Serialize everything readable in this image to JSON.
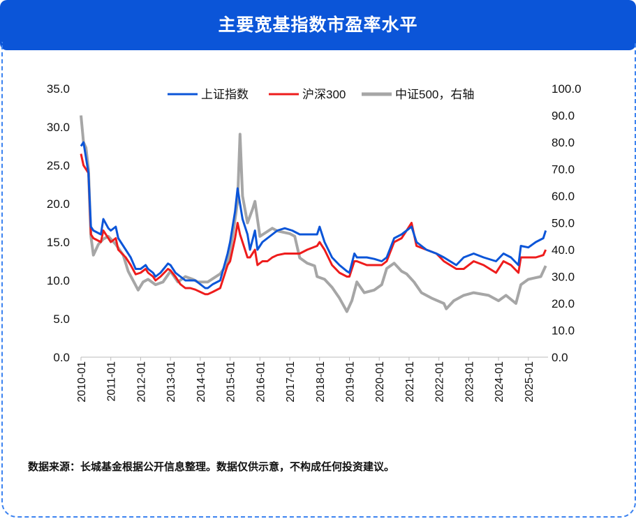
{
  "header": {
    "title": "主要宽基指数市盈率水平"
  },
  "footer": {
    "note": "数据来源：长城基金根据公开信息整理。数据仅供示意，不构成任何投资建议。"
  },
  "chart_data": {
    "type": "line",
    "title": "",
    "grid": false,
    "legend_position": "top",
    "y_left": {
      "lim": [
        0,
        35
      ],
      "ticks": [
        "0.0",
        "5.0",
        "10.0",
        "15.0",
        "20.0",
        "25.0",
        "30.0",
        "35.0"
      ]
    },
    "y_right": {
      "lim": [
        0,
        100
      ],
      "ticks": [
        "0.0",
        "10.0",
        "20.0",
        "30.0",
        "40.0",
        "50.0",
        "60.0",
        "70.0",
        "80.0",
        "90.0",
        "100.0"
      ]
    },
    "x_ticks": [
      "2010-01",
      "2011-01",
      "2012-01",
      "2013-01",
      "2014-01",
      "2015-01",
      "2016-01",
      "2017-01",
      "2018-01",
      "2019-01",
      "2020-01",
      "2021-01",
      "2022-01",
      "2023-01",
      "2024-01",
      "2025-01"
    ],
    "series": [
      {
        "name": "上证指数",
        "axis": "left",
        "color": "#0b55d8",
        "points": [
          [
            "2010-01",
            27.5
          ],
          [
            "2010-02",
            28
          ],
          [
            "2010-04",
            24
          ],
          [
            "2010-05",
            17
          ],
          [
            "2010-06",
            16.5
          ],
          [
            "2010-09",
            16
          ],
          [
            "2010-10",
            18
          ],
          [
            "2010-12",
            16.8
          ],
          [
            "2011-01",
            16.5
          ],
          [
            "2011-03",
            17
          ],
          [
            "2011-04",
            15.5
          ],
          [
            "2011-07",
            14
          ],
          [
            "2011-09",
            13
          ],
          [
            "2011-11",
            11.5
          ],
          [
            "2012-01",
            11.5
          ],
          [
            "2012-03",
            12
          ],
          [
            "2012-04",
            11.5
          ],
          [
            "2012-06",
            11
          ],
          [
            "2012-07",
            10.5
          ],
          [
            "2012-09",
            11
          ],
          [
            "2012-12",
            12.2
          ],
          [
            "2013-01",
            12
          ],
          [
            "2013-03",
            11
          ],
          [
            "2013-05",
            10.5
          ],
          [
            "2013-07",
            10
          ],
          [
            "2013-09",
            10
          ],
          [
            "2013-11",
            10
          ],
          [
            "2014-01",
            9.5
          ],
          [
            "2014-03",
            9
          ],
          [
            "2014-04",
            9
          ],
          [
            "2014-06",
            9.5
          ],
          [
            "2014-09",
            10
          ],
          [
            "2014-12",
            13.5
          ],
          [
            "2015-01",
            15
          ],
          [
            "2015-03",
            19
          ],
          [
            "2015-04",
            22
          ],
          [
            "2015-05",
            20
          ],
          [
            "2015-06",
            18
          ],
          [
            "2015-08",
            16
          ],
          [
            "2015-09",
            14
          ],
          [
            "2015-11",
            16.5
          ],
          [
            "2015-12",
            14
          ],
          [
            "2016-02",
            15
          ],
          [
            "2016-04",
            15.5
          ],
          [
            "2016-06",
            16
          ],
          [
            "2016-08",
            16.5
          ],
          [
            "2016-11",
            16.8
          ],
          [
            "2017-02",
            16.5
          ],
          [
            "2017-05",
            16
          ],
          [
            "2017-08",
            16
          ],
          [
            "2017-12",
            16
          ],
          [
            "2018-01",
            17
          ],
          [
            "2018-03",
            15
          ],
          [
            "2018-06",
            13
          ],
          [
            "2018-09",
            12
          ],
          [
            "2018-12",
            11.2
          ],
          [
            "2019-01",
            11
          ],
          [
            "2019-03",
            13.5
          ],
          [
            "2019-04",
            13
          ],
          [
            "2019-08",
            13
          ],
          [
            "2019-11",
            12.8
          ],
          [
            "2020-02",
            12.5
          ],
          [
            "2020-04",
            13
          ],
          [
            "2020-07",
            15.5
          ],
          [
            "2020-10",
            16
          ],
          [
            "2020-12",
            16.5
          ],
          [
            "2021-02",
            17
          ],
          [
            "2021-04",
            15
          ],
          [
            "2021-08",
            14
          ],
          [
            "2021-12",
            13.5
          ],
          [
            "2022-03",
            13
          ],
          [
            "2022-08",
            12
          ],
          [
            "2022-11",
            13
          ],
          [
            "2023-03",
            13.5
          ],
          [
            "2023-07",
            13
          ],
          [
            "2023-12",
            12.5
          ],
          [
            "2024-03",
            13.5
          ],
          [
            "2024-06",
            13
          ],
          [
            "2024-09",
            12
          ],
          [
            "2024-10",
            14.5
          ],
          [
            "2025-01",
            14.3
          ],
          [
            "2025-04",
            15
          ],
          [
            "2025-07",
            15.5
          ],
          [
            "2025-08",
            16.5
          ]
        ]
      },
      {
        "name": "沪深300",
        "axis": "left",
        "color": "#ee1c1c",
        "points": [
          [
            "2010-01",
            26.5
          ],
          [
            "2010-02",
            25
          ],
          [
            "2010-04",
            24
          ],
          [
            "2010-05",
            16
          ],
          [
            "2010-06",
            15.5
          ],
          [
            "2010-09",
            15
          ],
          [
            "2010-10",
            16.5
          ],
          [
            "2010-12",
            15.5
          ],
          [
            "2011-01",
            15
          ],
          [
            "2011-03",
            15.5
          ],
          [
            "2011-04",
            14
          ],
          [
            "2011-07",
            13
          ],
          [
            "2011-09",
            12
          ],
          [
            "2011-11",
            10.8
          ],
          [
            "2012-01",
            11
          ],
          [
            "2012-03",
            11.5
          ],
          [
            "2012-04",
            11
          ],
          [
            "2012-06",
            10.5
          ],
          [
            "2012-07",
            10
          ],
          [
            "2012-09",
            10.5
          ],
          [
            "2012-12",
            11.5
          ],
          [
            "2013-01",
            11.3
          ],
          [
            "2013-03",
            10.5
          ],
          [
            "2013-05",
            9.5
          ],
          [
            "2013-07",
            9
          ],
          [
            "2013-09",
            9
          ],
          [
            "2013-11",
            8.8
          ],
          [
            "2014-01",
            8.5
          ],
          [
            "2014-03",
            8.2
          ],
          [
            "2014-04",
            8.2
          ],
          [
            "2014-06",
            8.5
          ],
          [
            "2014-09",
            9
          ],
          [
            "2014-12",
            12
          ],
          [
            "2015-01",
            12.5
          ],
          [
            "2015-03",
            15.5
          ],
          [
            "2015-04",
            17.5
          ],
          [
            "2015-05",
            16
          ],
          [
            "2015-06",
            15
          ],
          [
            "2015-08",
            13
          ],
          [
            "2015-09",
            13
          ],
          [
            "2015-11",
            14
          ],
          [
            "2015-12",
            12
          ],
          [
            "2016-02",
            12.5
          ],
          [
            "2016-04",
            12.5
          ],
          [
            "2016-06",
            13
          ],
          [
            "2016-08",
            13.3
          ],
          [
            "2016-11",
            13.5
          ],
          [
            "2017-02",
            13.5
          ],
          [
            "2017-05",
            13.5
          ],
          [
            "2017-08",
            14
          ],
          [
            "2017-12",
            14.5
          ],
          [
            "2018-01",
            15
          ],
          [
            "2018-03",
            14
          ],
          [
            "2018-06",
            12
          ],
          [
            "2018-09",
            11
          ],
          [
            "2018-12",
            10.5
          ],
          [
            "2019-01",
            10.5
          ],
          [
            "2019-03",
            12.5
          ],
          [
            "2019-04",
            12.5
          ],
          [
            "2019-08",
            12
          ],
          [
            "2019-11",
            12
          ],
          [
            "2020-02",
            12
          ],
          [
            "2020-04",
            12.5
          ],
          [
            "2020-07",
            15
          ],
          [
            "2020-10",
            15.5
          ],
          [
            "2020-12",
            16.5
          ],
          [
            "2021-02",
            17.5
          ],
          [
            "2021-04",
            14.5
          ],
          [
            "2021-08",
            14
          ],
          [
            "2021-12",
            13.5
          ],
          [
            "2022-03",
            12.5
          ],
          [
            "2022-08",
            11.5
          ],
          [
            "2022-11",
            11.5
          ],
          [
            "2023-03",
            12.5
          ],
          [
            "2023-07",
            12
          ],
          [
            "2023-12",
            11
          ],
          [
            "2024-03",
            12.5
          ],
          [
            "2024-06",
            12
          ],
          [
            "2024-09",
            11
          ],
          [
            "2024-10",
            13
          ],
          [
            "2025-01",
            13
          ],
          [
            "2025-04",
            13
          ],
          [
            "2025-07",
            13.3
          ],
          [
            "2025-08",
            14
          ]
        ]
      },
      {
        "name": "中证500，右轴",
        "axis": "right",
        "color": "#a6a6a6",
        "points": [
          [
            "2010-01",
            90
          ],
          [
            "2010-02",
            80
          ],
          [
            "2010-03",
            78
          ],
          [
            "2010-04",
            70
          ],
          [
            "2010-05",
            45
          ],
          [
            "2010-06",
            38
          ],
          [
            "2010-08",
            42
          ],
          [
            "2010-10",
            44
          ],
          [
            "2010-12",
            45
          ],
          [
            "2011-03",
            42
          ],
          [
            "2011-06",
            38
          ],
          [
            "2011-08",
            32
          ],
          [
            "2011-12",
            25
          ],
          [
            "2012-02",
            28
          ],
          [
            "2012-04",
            29
          ],
          [
            "2012-07",
            27
          ],
          [
            "2012-10",
            28
          ],
          [
            "2013-01",
            32
          ],
          [
            "2013-04",
            28
          ],
          [
            "2013-07",
            30
          ],
          [
            "2013-10",
            29
          ],
          [
            "2013-12",
            28
          ],
          [
            "2014-04",
            28
          ],
          [
            "2014-09",
            31
          ],
          [
            "2014-12",
            35
          ],
          [
            "2015-02",
            45
          ],
          [
            "2015-04",
            58
          ],
          [
            "2015-05",
            83
          ],
          [
            "2015-06",
            60
          ],
          [
            "2015-08",
            50
          ],
          [
            "2015-10",
            55
          ],
          [
            "2015-11",
            58
          ],
          [
            "2016-01",
            45
          ],
          [
            "2016-06",
            48
          ],
          [
            "2016-08",
            47
          ],
          [
            "2017-01",
            46
          ],
          [
            "2017-03",
            45
          ],
          [
            "2017-05",
            37
          ],
          [
            "2017-08",
            35
          ],
          [
            "2017-11",
            34
          ],
          [
            "2017-12",
            30
          ],
          [
            "2018-03",
            29
          ],
          [
            "2018-06",
            26
          ],
          [
            "2018-09",
            22
          ],
          [
            "2018-12",
            17
          ],
          [
            "2019-02",
            21
          ],
          [
            "2019-04",
            28
          ],
          [
            "2019-07",
            24
          ],
          [
            "2019-11",
            25
          ],
          [
            "2020-02",
            27
          ],
          [
            "2020-04",
            33
          ],
          [
            "2020-07",
            35
          ],
          [
            "2020-10",
            32
          ],
          [
            "2020-12",
            31
          ],
          [
            "2021-03",
            28
          ],
          [
            "2021-06",
            24
          ],
          [
            "2021-10",
            22
          ],
          [
            "2022-03",
            20
          ],
          [
            "2022-04",
            18
          ],
          [
            "2022-07",
            21
          ],
          [
            "2022-11",
            23
          ],
          [
            "2023-03",
            24
          ],
          [
            "2023-09",
            23
          ],
          [
            "2024-01",
            21
          ],
          [
            "2024-04",
            23
          ],
          [
            "2024-08",
            20
          ],
          [
            "2024-10",
            27
          ],
          [
            "2025-01",
            29
          ],
          [
            "2025-06",
            30
          ],
          [
            "2025-08",
            34
          ]
        ]
      }
    ]
  }
}
